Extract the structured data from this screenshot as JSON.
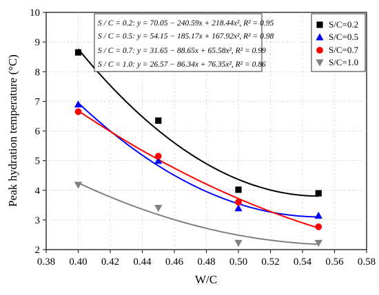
{
  "chart_data": {
    "type": "scatter",
    "xlabel": "W/C",
    "ylabel": "Peak hydration temperature (°C)",
    "xlim": [
      0.38,
      0.58
    ],
    "ylim": [
      2,
      10
    ],
    "x_ticks": [
      "0.38",
      "0.40",
      "0.42",
      "0.44",
      "0.46",
      "0.48",
      "0.50",
      "0.52",
      "0.54",
      "0.56",
      "0.58"
    ],
    "y_ticks": [
      "2",
      "3",
      "4",
      "5",
      "6",
      "7",
      "8",
      "9",
      "10"
    ],
    "grid": true,
    "legend_position": "top-right",
    "series": [
      {
        "name": "S/C=0.2",
        "marker": "square",
        "color": "#000000",
        "x": [
          0.4,
          0.45,
          0.5,
          0.55
        ],
        "y": [
          8.65,
          6.35,
          4.02,
          3.9
        ],
        "fit": [
          70.05,
          -240.59,
          218.44
        ]
      },
      {
        "name": "S/C=0.5",
        "marker": "triangle-up",
        "color": "#0000ff",
        "x": [
          0.4,
          0.45,
          0.5,
          0.55
        ],
        "y": [
          6.9,
          5.0,
          3.4,
          3.15
        ],
        "fit": [
          54.15,
          -185.17,
          167.92
        ]
      },
      {
        "name": "S/C=0.7",
        "marker": "circle",
        "color": "#ff0000",
        "x": [
          0.4,
          0.45,
          0.5,
          0.55
        ],
        "y": [
          6.65,
          5.15,
          3.6,
          2.77
        ],
        "fit": [
          31.65,
          -88.65,
          65.58
        ]
      },
      {
        "name": "S/C=1.0",
        "marker": "triangle-down",
        "color": "#808080",
        "x": [
          0.4,
          0.45,
          0.5,
          0.55
        ],
        "y": [
          4.18,
          3.4,
          2.22,
          2.22
        ],
        "fit": [
          26.57,
          -86.34,
          76.35
        ]
      }
    ],
    "annotations": [
      "S / C = 0.2: y = 70.05 − 240.59x + 218.44x², R² = 0.95",
      "S / C = 0.5: y = 54.15 − 185.17x + 167.92x², R² = 0.98",
      "S / C = 0.7: y = 31.65 − 88.65x + 65.58x², R² = 0.99",
      "S / C = 1.0: y = 26.57 − 86.34x + 76.35x², R² = 0.86"
    ]
  }
}
